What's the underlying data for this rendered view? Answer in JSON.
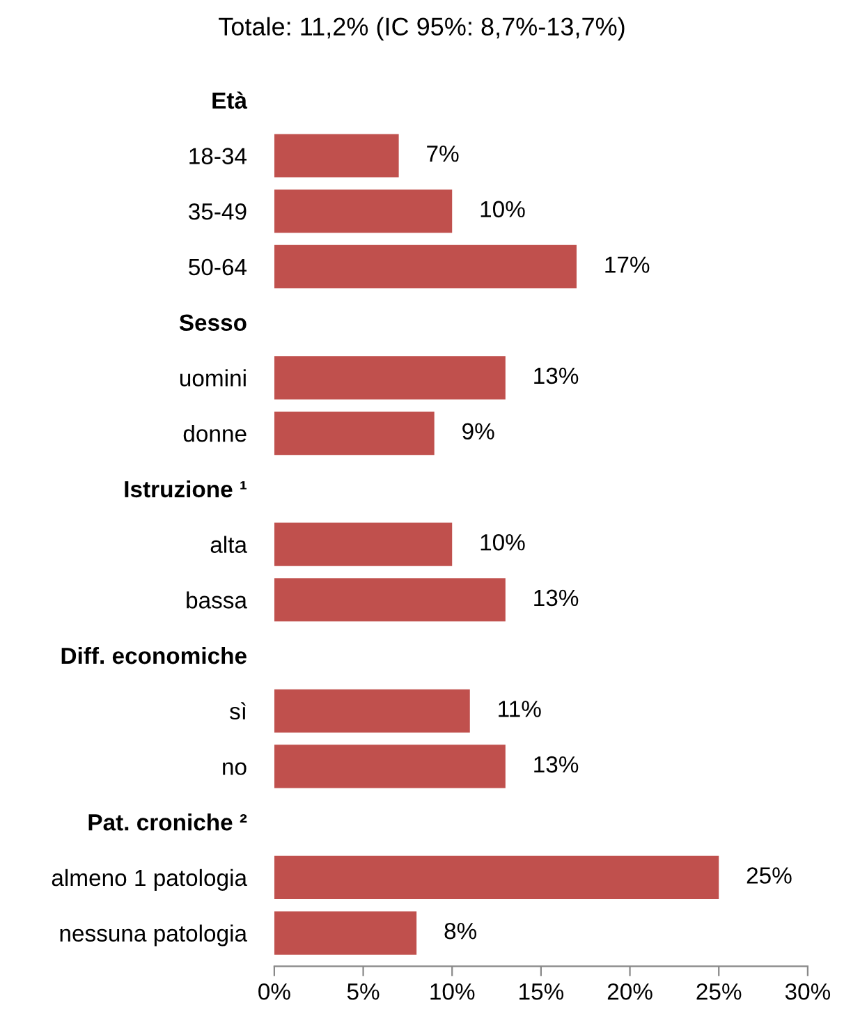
{
  "chart_data": {
    "type": "bar",
    "orientation": "horizontal",
    "title": "Totale: 11,2% (IC 95%: 8,7%-13,7%)",
    "categories": [
      "Età",
      "18-34",
      "35-49",
      "50-64",
      "Sesso",
      "uomini",
      "donne",
      "Istruzione ¹",
      "alta",
      "bassa",
      "Diff. economiche",
      "sì",
      "no",
      "Pat. croniche ²",
      "almeno 1 patologia",
      "nessuna patologia"
    ],
    "values": [
      null,
      7,
      10,
      17,
      null,
      13,
      9,
      null,
      10,
      13,
      null,
      11,
      13,
      null,
      25,
      8
    ],
    "value_labels": [
      null,
      "7%",
      "10%",
      "17%",
      null,
      "13%",
      "9%",
      null,
      "10%",
      "13%",
      null,
      "11%",
      "13%",
      null,
      "25%",
      "8%"
    ],
    "color": "#c0504d",
    "xlim": [
      0,
      30
    ],
    "xticks": [
      {
        "value": 0,
        "label": "0%"
      },
      {
        "value": 5,
        "label": "5%"
      },
      {
        "value": 10,
        "label": "10%"
      },
      {
        "value": 15,
        "label": "15%"
      },
      {
        "value": 20,
        "label": "20%"
      },
      {
        "value": 25,
        "label": "25%"
      },
      {
        "value": 30,
        "label": "30%"
      }
    ],
    "grid": false,
    "legend": false
  }
}
